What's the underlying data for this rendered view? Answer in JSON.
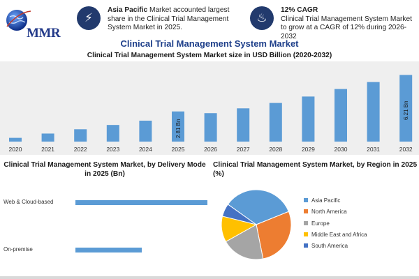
{
  "brand": {
    "logo_text": "MMR"
  },
  "header": {
    "info_left": {
      "highlight": "Asia Pacific",
      "text": " Market accounted largest share in the Clinical Trial Management System Market in 2025."
    },
    "info_right": {
      "highlight": "12% CAGR",
      "text": "Clinical Trial Management System Market to grow at a CAGR of 12% during 2026-2032"
    }
  },
  "main_title": "Clinical Trial Management System Market",
  "colors": {
    "bar": "#5b9bd5",
    "band": "#efefef",
    "title": "#1e3f8a",
    "icon_bg": "#223a6d"
  },
  "icons": [
    "globe-icon",
    "bolt-icon",
    "flame-icon"
  ],
  "chart_data": [
    {
      "type": "bar",
      "title": "Clinical Trial Management System Market size in USD Billion (2020-2032)",
      "categories": [
        "2020",
        "2021",
        "2022",
        "2023",
        "2024",
        "2025",
        "2026",
        "2027",
        "2028",
        "2029",
        "2030",
        "2031",
        "2032"
      ],
      "values": [
        0.35,
        0.75,
        1.15,
        1.55,
        1.95,
        2.81,
        2.65,
        3.1,
        3.6,
        4.2,
        4.9,
        5.55,
        6.21
      ],
      "data_labels": {
        "5": "2.81 Bn",
        "12": "6.21 Bn"
      },
      "ylim": [
        0,
        6.5
      ],
      "grid": false
    },
    {
      "type": "bar",
      "orientation": "horizontal",
      "title": "Clinical Trial Management System Market, by Delivery Mode in 2025 (Bn)",
      "categories": [
        "Web & Cloud-based",
        "On-premise"
      ],
      "values": [
        1.77,
        0.89
      ],
      "xlim": [
        0,
        1.8
      ]
    },
    {
      "type": "pie",
      "title": "Clinical Trial Management System Market, by Region in 2025 (%)",
      "labels": [
        "Asia Pacific",
        "North America",
        "Europe",
        "Middle East and Africa",
        "South America"
      ],
      "values": [
        34,
        28,
        20,
        12,
        6
      ],
      "colors": [
        "#5b9bd5",
        "#ed7d31",
        "#a5a5a5",
        "#ffc000",
        "#4472c4"
      ],
      "legend_position": "right"
    }
  ]
}
